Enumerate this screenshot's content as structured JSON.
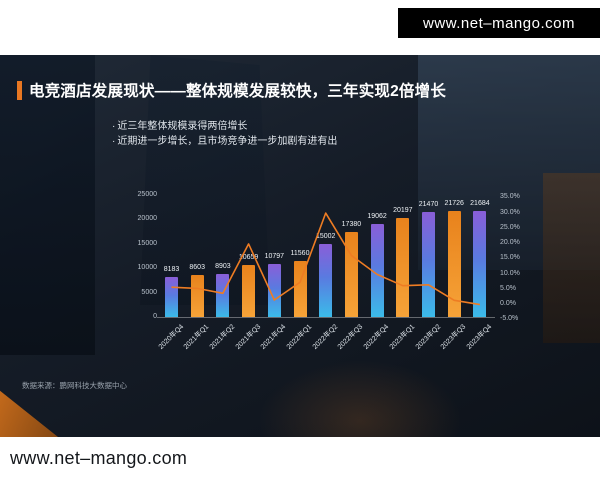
{
  "header": {
    "url": "www.net–mango.com"
  },
  "footer": {
    "url": "www.net–mango.com"
  },
  "slide": {
    "title": "电竞酒店发展现状——整体规模发展较快，三年实现2倍增长",
    "bullets": [
      "近三年整体规模录得两倍增长",
      "近期进一步增长，且市场竞争进一步加剧有进有出"
    ],
    "source": "数据来源：鹏网科技大数据中心"
  },
  "chart_data": {
    "type": "bar",
    "title": "",
    "categories": [
      "2020年Q4",
      "2021年Q1",
      "2021年Q2",
      "2021年Q3",
      "2021年Q4",
      "2022年Q1",
      "2022年Q2",
      "2022年Q3",
      "2022年Q4",
      "2023年Q1",
      "2023年Q2",
      "2023年Q3",
      "2023年Q4"
    ],
    "series": [
      {
        "name": "bar-series",
        "type": "bar",
        "values": [
          8183,
          8603,
          8903,
          10659,
          10797,
          11560,
          15002,
          17380,
          19062,
          20197,
          21470,
          21726,
          21684
        ]
      },
      {
        "name": "line-series",
        "type": "line",
        "unit": "%",
        "estimated": true,
        "values": [
          5.5,
          5.1,
          3.5,
          19.7,
          1.3,
          7.1,
          29.8,
          15.9,
          9.7,
          6.0,
          6.3,
          1.2,
          -0.2
        ]
      }
    ],
    "left_axis": {
      "ticks": [
        0,
        5000,
        10000,
        15000,
        20000,
        25000
      ],
      "min": 0,
      "max": 25000
    },
    "right_axis": {
      "tick_labels": [
        "35.0%",
        "30.0%",
        "25.0%",
        "20.0%",
        "15.0%",
        "10.0%",
        "5.0%",
        "0.0%",
        "-5.0%"
      ],
      "min": -5,
      "max": 35
    },
    "legend_visible": false,
    "grid": false
  },
  "colors": {
    "accent_orange": "#e87722",
    "bar_orange_top": "#e8821c",
    "bar_orange_bottom": "#f6a338",
    "bar_purple_top": "#8a5ed8",
    "bar_purple_mid": "#5a7ae0",
    "bar_purple_bottom": "#3bbbe9",
    "line_orange": "#ee7c23"
  }
}
